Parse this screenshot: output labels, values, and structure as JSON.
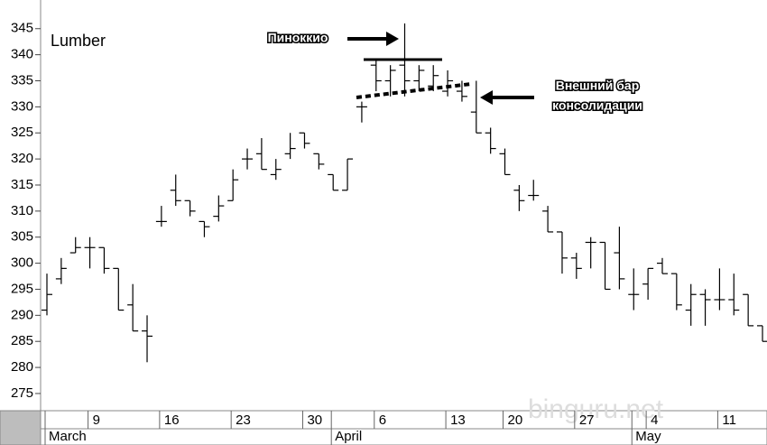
{
  "chart_data": {
    "type": "ohlc",
    "title": "Lumber",
    "categories": [
      null,
      null,
      null,
      "9",
      null,
      null,
      null,
      null,
      "16",
      null,
      null,
      null,
      null,
      "23",
      null,
      null,
      null,
      null,
      "30",
      null,
      null,
      null,
      null,
      "6",
      null,
      null,
      null,
      null,
      "13",
      null,
      null,
      null,
      "20",
      null,
      null,
      null,
      null,
      "27",
      null,
      null,
      null,
      null,
      "4",
      null,
      null,
      null,
      null,
      "11",
      null,
      null,
      null
    ],
    "months": [
      {
        "label": "March",
        "category": 0
      },
      {
        "label": "April",
        "category": 20
      },
      {
        "label": "May",
        "category": 41
      }
    ],
    "open": [
      291,
      297,
      302,
      303,
      303,
      299,
      292,
      287,
      308,
      314,
      312,
      308,
      309,
      312,
      320,
      321,
      317,
      321,
      325,
      321,
      317,
      314,
      330,
      338,
      335,
      338,
      335,
      334,
      333,
      333,
      329,
      325,
      321,
      314,
      313,
      310,
      306,
      301,
      304,
      304,
      302,
      294,
      296,
      300,
      298,
      291,
      294,
      293,
      293,
      294,
      288
    ],
    "high": [
      298,
      301,
      305,
      305,
      303,
      299,
      296,
      290,
      311,
      317,
      312,
      308,
      313,
      318,
      322,
      324,
      320,
      325,
      325,
      321,
      317,
      320,
      331,
      339,
      338,
      346,
      338,
      338,
      337,
      335,
      335,
      326,
      322,
      315,
      316,
      311,
      306,
      302,
      305,
      304,
      307,
      299,
      299,
      301,
      298,
      296,
      295,
      299,
      298,
      294,
      288
    ],
    "low": [
      290,
      296,
      302,
      299,
      298,
      291,
      287,
      281,
      307,
      311,
      309,
      305,
      308,
      312,
      318,
      318,
      316,
      320,
      322,
      318,
      314,
      314,
      327,
      333,
      332,
      332,
      333,
      333,
      332,
      331,
      325,
      321,
      317,
      310,
      312,
      306,
      298,
      297,
      299,
      295,
      295,
      291,
      293,
      298,
      291,
      288,
      288,
      291,
      290,
      288,
      285
    ],
    "close": [
      294,
      299,
      303,
      303,
      299,
      291,
      287,
      286,
      308,
      312,
      310,
      307,
      311,
      316,
      320,
      318,
      318,
      322,
      323,
      319,
      314,
      320,
      330,
      335,
      337,
      335,
      337,
      336,
      335,
      332,
      325,
      322,
      317,
      312,
      313,
      306,
      301,
      299,
      304,
      295,
      297,
      294,
      299,
      298,
      292,
      294,
      293,
      293,
      291,
      288,
      285
    ],
    "color": "#000000",
    "ylim": [
      271.7,
      350.5
    ],
    "yticks": [
      275,
      280,
      285,
      290,
      295,
      300,
      305,
      310,
      315,
      320,
      325,
      330,
      335,
      340,
      345
    ],
    "annotations": {
      "pinocchio": "Пиноккио",
      "outside_bar": [
        "Внешний бар",
        "консолидации"
      ]
    },
    "watermark": "binguru.net"
  }
}
